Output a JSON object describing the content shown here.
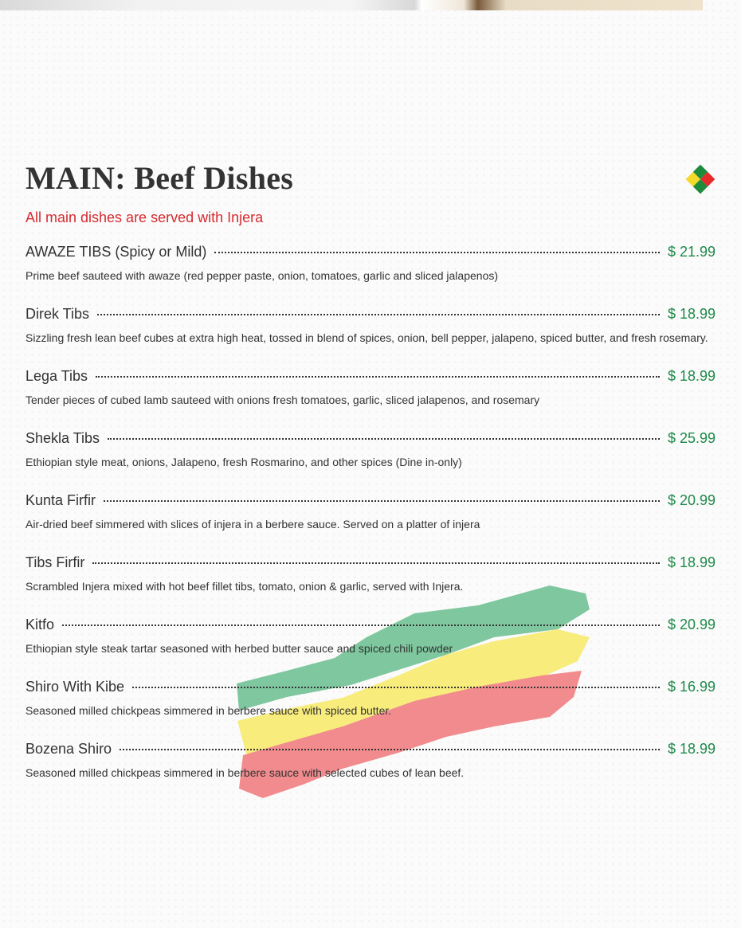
{
  "header": {
    "title": "MAIN: Beef Dishes",
    "subtitle": "All main dishes are served with Injera",
    "logo_icon": "ethiopian-flag-diamond-icon"
  },
  "colors": {
    "price": "#1e8a4a",
    "subtitle": "#d62a2f",
    "flag_green": "#1e8a3c",
    "flag_yellow": "#f2d92a",
    "flag_red": "#e52a2a"
  },
  "items": [
    {
      "name": "AWAZE TIBS (Spicy or Mild)",
      "price": "$ 21.99",
      "description": "Prime beef sauteed with awaze (red pepper paste, onion, tomatoes, garlic and sliced jalapenos)"
    },
    {
      "name": "Direk Tibs",
      "price": "$ 18.99",
      "description": "Sizzling fresh lean beef cubes at extra high heat, tossed in blend of spices, onion, bell pepper, jalapeno, spiced butter, and fresh rosemary."
    },
    {
      "name": "Lega Tibs",
      "price": "$ 18.99",
      "description": "Tender pieces of cubed lamb sauteed with onions fresh tomatoes, garlic, sliced jalapenos, and rosemary"
    },
    {
      "name": "Shekla Tibs",
      "price": "$ 25.99",
      "description": "Ethiopian style meat, onions, Jalapeno, fresh Rosmarino, and other spices (Dine in-only)"
    },
    {
      "name": "Kunta Firfir",
      "price": "$ 20.99",
      "description": "Air-dried beef simmered with slices of injera in a berbere sauce. Served on a platter of injera"
    },
    {
      "name": "Tibs Firfir",
      "price": "$ 18.99",
      "description": "Scrambled Injera mixed with hot beef fillet tibs, tomato, onion & garlic, served with Injera."
    },
    {
      "name": "Kitfo",
      "price": "$ 20.99",
      "description": "Ethiopian style steak tartar seasoned with herbed butter sauce and spiced chili powder"
    },
    {
      "name": "Shiro With Kibe",
      "price": "$ 16.99",
      "description": "Seasoned milled chickpeas simmered in berbere sauce with spiced butter."
    },
    {
      "name": "Bozena Shiro",
      "price": "$ 18.99",
      "description": "Seasoned milled chickpeas simmered in berbere sauce with selected cubes of lean beef."
    }
  ]
}
